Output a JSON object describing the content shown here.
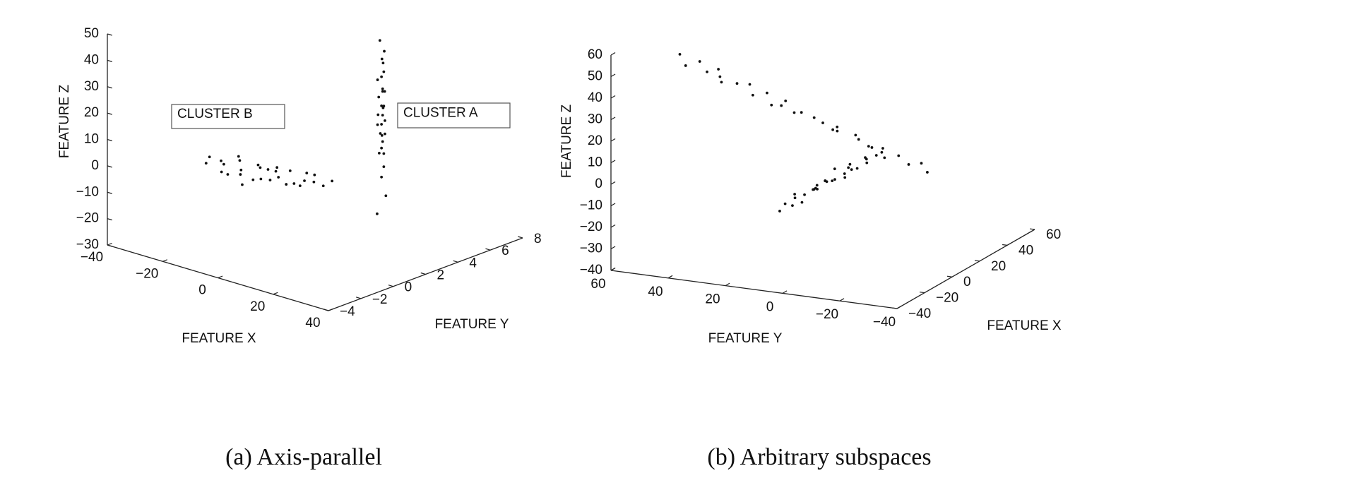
{
  "chart_data": [
    {
      "type": "scatter3d",
      "caption": "(a) Axis-parallel",
      "xlabel": "FEATURE X",
      "ylabel": "FEATURE Y",
      "zlabel": "FEATURE Z",
      "color": "#111111",
      "xlim": [
        -40,
        40
      ],
      "ylim": [
        -4,
        8
      ],
      "zlim": [
        -30,
        50
      ],
      "xticks": [
        {
          "value": -40,
          "label": "−40"
        },
        {
          "value": -20,
          "label": "−20"
        },
        0,
        20,
        40
      ],
      "yticks": [
        {
          "value": -4,
          "label": "−4"
        },
        {
          "value": -2,
          "label": "−2"
        },
        0,
        2,
        4,
        6,
        8
      ],
      "zticks": [
        {
          "value": -30,
          "label": "−30"
        },
        {
          "value": -20,
          "label": "−20"
        },
        {
          "value": -10,
          "label": "−10"
        },
        0,
        10,
        20,
        30,
        40,
        50
      ],
      "series": [
        {
          "name": "CLUSTER A",
          "x": [
            9,
            11,
            10,
            12,
            8,
            10,
            11,
            9,
            13,
            10,
            7,
            11,
            10,
            12,
            9,
            10,
            11,
            8,
            10,
            12,
            9,
            11,
            10,
            13,
            8,
            10,
            9,
            11,
            12,
            10
          ],
          "y": [
            4.3,
            4.5,
            4.4,
            4.2,
            4.6,
            4.4,
            4.3,
            4.5,
            4.1,
            4.4,
            4.7,
            4.3,
            4.5,
            4.2,
            4.4,
            4.6,
            4.3,
            4.5,
            4.4,
            4.2,
            4.6,
            4.4,
            4.3,
            4.1,
            4.5,
            4.4,
            4.6,
            4.3,
            4.2,
            4.5
          ],
          "z": [
            -22,
            -15,
            -8,
            -3,
            0,
            3,
            6,
            8,
            10,
            12,
            14,
            16,
            18,
            20,
            22,
            24,
            26,
            28,
            30,
            33,
            36,
            40,
            44,
            15,
            11,
            19,
            7,
            25,
            2,
            35
          ]
        },
        {
          "name": "CLUSTER B",
          "x": [
            -40,
            -37,
            -35,
            -33,
            -31,
            -29,
            -27,
            -25,
            -23,
            -21,
            -19,
            -17,
            -15,
            -13,
            -11,
            -9,
            -7,
            -5,
            -3,
            -1,
            1,
            3,
            5,
            -30,
            -24,
            -18,
            -12,
            -6,
            -34,
            -20
          ],
          "y": [
            2.1,
            1.8,
            2.2,
            2.0,
            1.9,
            2.3,
            2.0,
            1.7,
            2.1,
            2.2,
            1.9,
            2.0,
            2.3,
            1.8,
            2.1,
            2.0,
            1.9,
            2.2,
            2.0,
            2.1,
            1.8,
            2.0,
            2.2,
            2.4,
            1.6,
            2.3,
            1.7,
            2.1,
            2.0,
            1.9
          ],
          "z": [
            -13,
            -9,
            -15,
            -11,
            -14,
            -9,
            -13,
            -10,
            -14,
            -9,
            -12,
            -8,
            -11,
            -7,
            -12,
            -6,
            -10,
            -9,
            -5,
            -8,
            -4,
            -8,
            -6,
            -8,
            -15,
            -13,
            -5,
            -11,
            -10,
            -7
          ]
        }
      ]
    },
    {
      "type": "scatter3d",
      "caption": "(b) Arbitrary subspaces",
      "xlabel": "FEATURE X",
      "ylabel": "FEATURE Y",
      "zlabel": "FEATURE Z",
      "color": "#111111",
      "xlim": [
        -40,
        60
      ],
      "ylim": [
        60,
        -40
      ],
      "zlim": [
        -40,
        60
      ],
      "xticks": [
        {
          "value": -40,
          "label": "−40"
        },
        {
          "value": -20,
          "label": "−20"
        },
        0,
        20,
        40,
        60
      ],
      "yticks": [
        60,
        40,
        20,
        0,
        {
          "value": -20,
          "label": "−20"
        },
        {
          "value": -40,
          "label": "−40"
        }
      ],
      "zticks": [
        {
          "value": -40,
          "label": "−40"
        },
        {
          "value": -30,
          "label": "−30"
        },
        {
          "value": -20,
          "label": "−20"
        },
        {
          "value": -10,
          "label": "−10"
        },
        0,
        10,
        20,
        30,
        40,
        50,
        60
      ],
      "series": [
        {
          "x": [
            10,
            8,
            12,
            9,
            11,
            7,
            10,
            13,
            9,
            11,
            8,
            12,
            10,
            9,
            12,
            10,
            11,
            8,
            13,
            9,
            10,
            12,
            7,
            11,
            10,
            13,
            9,
            8,
            11,
            10
          ],
          "y": [
            60,
            57,
            54,
            50,
            47,
            44,
            40,
            37,
            34,
            30,
            27,
            24,
            20,
            17,
            14,
            10,
            7,
            4,
            0,
            -3,
            -6,
            -10,
            -13,
            -16,
            -20,
            -23,
            -27,
            45,
            25,
            5
          ],
          "z": [
            42,
            38,
            39,
            36,
            37,
            33,
            32,
            31,
            28,
            29,
            25,
            26,
            22,
            23,
            20,
            19,
            16,
            17,
            14,
            14,
            11,
            10,
            8,
            8,
            5,
            5,
            3,
            35,
            24,
            18
          ]
        },
        {
          "x": [
            -40,
            -37,
            -34,
            -31,
            -28,
            -25,
            -22,
            -19,
            -16,
            -13,
            -10,
            -7,
            -4,
            -1,
            2,
            5,
            8,
            11,
            14,
            17,
            20,
            23,
            26,
            29,
            32,
            -20,
            -5,
            10,
            0,
            -15
          ],
          "y": [
            1,
            -2,
            2,
            0,
            -1,
            3,
            1,
            -2,
            0,
            2,
            -1,
            1,
            0,
            -3,
            2,
            0,
            -1,
            1,
            3,
            -2,
            0,
            1,
            -1,
            2,
            0,
            -1,
            2,
            -2,
            1,
            0
          ],
          "z": [
            -2,
            0,
            -1,
            1,
            -2,
            0,
            -1,
            1,
            0,
            -2,
            1,
            0,
            -1,
            0,
            2,
            -1,
            0,
            1,
            -2,
            0,
            1,
            -1,
            0,
            2,
            -1,
            1,
            -1,
            0,
            -2,
            1
          ]
        }
      ]
    }
  ]
}
